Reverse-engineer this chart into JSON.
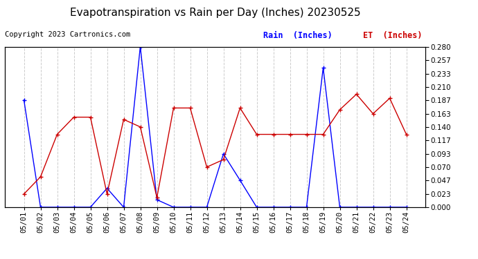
{
  "title": "Evapotranspiration vs Rain per Day (Inches) 20230525",
  "copyright": "Copyright 2023 Cartronics.com",
  "legend_rain": "Rain  (Inches)",
  "legend_et": "ET  (Inches)",
  "dates": [
    "05/01",
    "05/02",
    "05/03",
    "05/04",
    "05/05",
    "05/06",
    "05/07",
    "05/08",
    "05/09",
    "05/10",
    "05/11",
    "05/12",
    "05/13",
    "05/14",
    "05/15",
    "05/16",
    "05/17",
    "05/18",
    "05/19",
    "05/20",
    "05/21",
    "05/22",
    "05/23",
    "05/24"
  ],
  "rain": [
    0.187,
    0.0,
    0.0,
    0.0,
    0.0,
    0.033,
    0.0,
    0.28,
    0.013,
    0.0,
    0.0,
    0.0,
    0.093,
    0.047,
    0.0,
    0.0,
    0.0,
    0.0,
    0.243,
    0.0,
    0.0,
    0.0,
    0.0,
    0.0
  ],
  "et": [
    0.023,
    0.053,
    0.127,
    0.157,
    0.157,
    0.023,
    0.153,
    0.14,
    0.017,
    0.173,
    0.173,
    0.07,
    0.083,
    0.173,
    0.127,
    0.127,
    0.127,
    0.127,
    0.127,
    0.17,
    0.197,
    0.163,
    0.19,
    0.127
  ],
  "ylim": [
    0.0,
    0.28
  ],
  "yticks": [
    0.0,
    0.023,
    0.047,
    0.07,
    0.093,
    0.117,
    0.14,
    0.163,
    0.187,
    0.21,
    0.233,
    0.257,
    0.28
  ],
  "rain_color": "#0000ff",
  "et_color": "#cc0000",
  "grid_color": "#cccccc",
  "bg_color": "#ffffff",
  "title_fontsize": 11,
  "copyright_fontsize": 7.5,
  "legend_fontsize": 8.5,
  "tick_fontsize": 7.5
}
